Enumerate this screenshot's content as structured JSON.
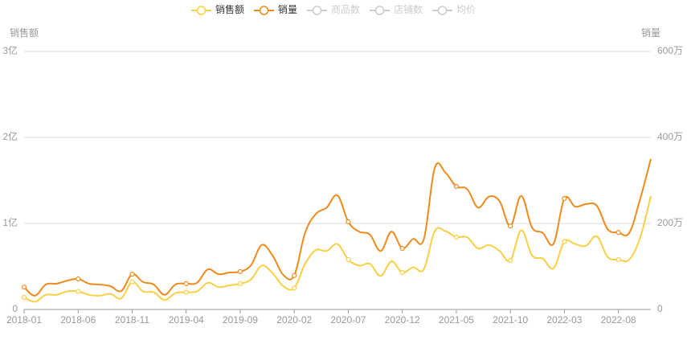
{
  "chart_data": {
    "type": "line",
    "y_title": "销售额",
    "y2_title": "销量",
    "categories": [
      "2018-01",
      null,
      null,
      null,
      null,
      "2018-06",
      null,
      null,
      null,
      null,
      "2018-11",
      null,
      null,
      null,
      null,
      "2019-04",
      null,
      null,
      null,
      null,
      "2019-09",
      null,
      null,
      null,
      null,
      "2020-02",
      null,
      null,
      null,
      null,
      "2020-07",
      null,
      null,
      null,
      null,
      "2020-12",
      null,
      null,
      null,
      null,
      "2021-05",
      null,
      null,
      null,
      null,
      "2021-10",
      null,
      null,
      null,
      null,
      "2022-03",
      null,
      null,
      null,
      null,
      "2022-08",
      null,
      null,
      null
    ],
    "series": [
      {
        "name": "销售额",
        "color": "#f9cf45",
        "values": [
          14000000,
          9000000,
          17000000,
          17000000,
          21000000,
          21000000,
          17000000,
          16000000,
          18000000,
          13000000,
          32000000,
          21000000,
          20000000,
          11000000,
          19000000,
          20000000,
          21000000,
          31000000,
          26000000,
          28000000,
          30000000,
          35000000,
          51000000,
          42000000,
          27000000,
          25000000,
          53000000,
          69000000,
          68000000,
          76000000,
          58000000,
          51000000,
          53000000,
          39000000,
          56000000,
          43000000,
          49000000,
          47000000,
          91000000,
          91000000,
          84000000,
          84000000,
          71000000,
          75000000,
          68000000,
          57000000,
          92000000,
          63000000,
          59000000,
          48000000,
          79000000,
          76000000,
          74000000,
          85000000,
          61000000,
          58000000,
          58000000,
          83000000,
          132000000
        ]
      },
      {
        "name": "销量",
        "color": "#ef8a1c",
        "axis": "y2",
        "values": [
          520000,
          320000,
          580000,
          600000,
          670000,
          710000,
          600000,
          580000,
          540000,
          430000,
          820000,
          640000,
          580000,
          340000,
          580000,
          600000,
          620000,
          930000,
          820000,
          860000,
          880000,
          1030000,
          1500000,
          1250000,
          800000,
          790000,
          1780000,
          2220000,
          2370000,
          2650000,
          2040000,
          1810000,
          1740000,
          1360000,
          1810000,
          1420000,
          1640000,
          1640000,
          3290000,
          3180000,
          2860000,
          2800000,
          2370000,
          2620000,
          2520000,
          1940000,
          2640000,
          1910000,
          1780000,
          1530000,
          2580000,
          2390000,
          2450000,
          2410000,
          1870000,
          1790000,
          1780000,
          2560000,
          3500000
        ]
      }
    ],
    "legend_disabled": [
      "商品数",
      "店铺数",
      "均价"
    ],
    "ylim": [
      0,
      300000000
    ],
    "yticks": [
      0,
      {
        "value": 100000000,
        "label": "1亿"
      },
      {
        "value": 200000000,
        "label": "2亿"
      },
      {
        "value": 300000000,
        "label": "3亿"
      }
    ],
    "y2lim": [
      0,
      6000000
    ],
    "y2ticks": [
      0,
      {
        "value": 2000000,
        "label": "200万"
      },
      {
        "value": 4000000,
        "label": "400万"
      },
      {
        "value": 6000000,
        "label": "600万"
      }
    ],
    "grid": true
  }
}
